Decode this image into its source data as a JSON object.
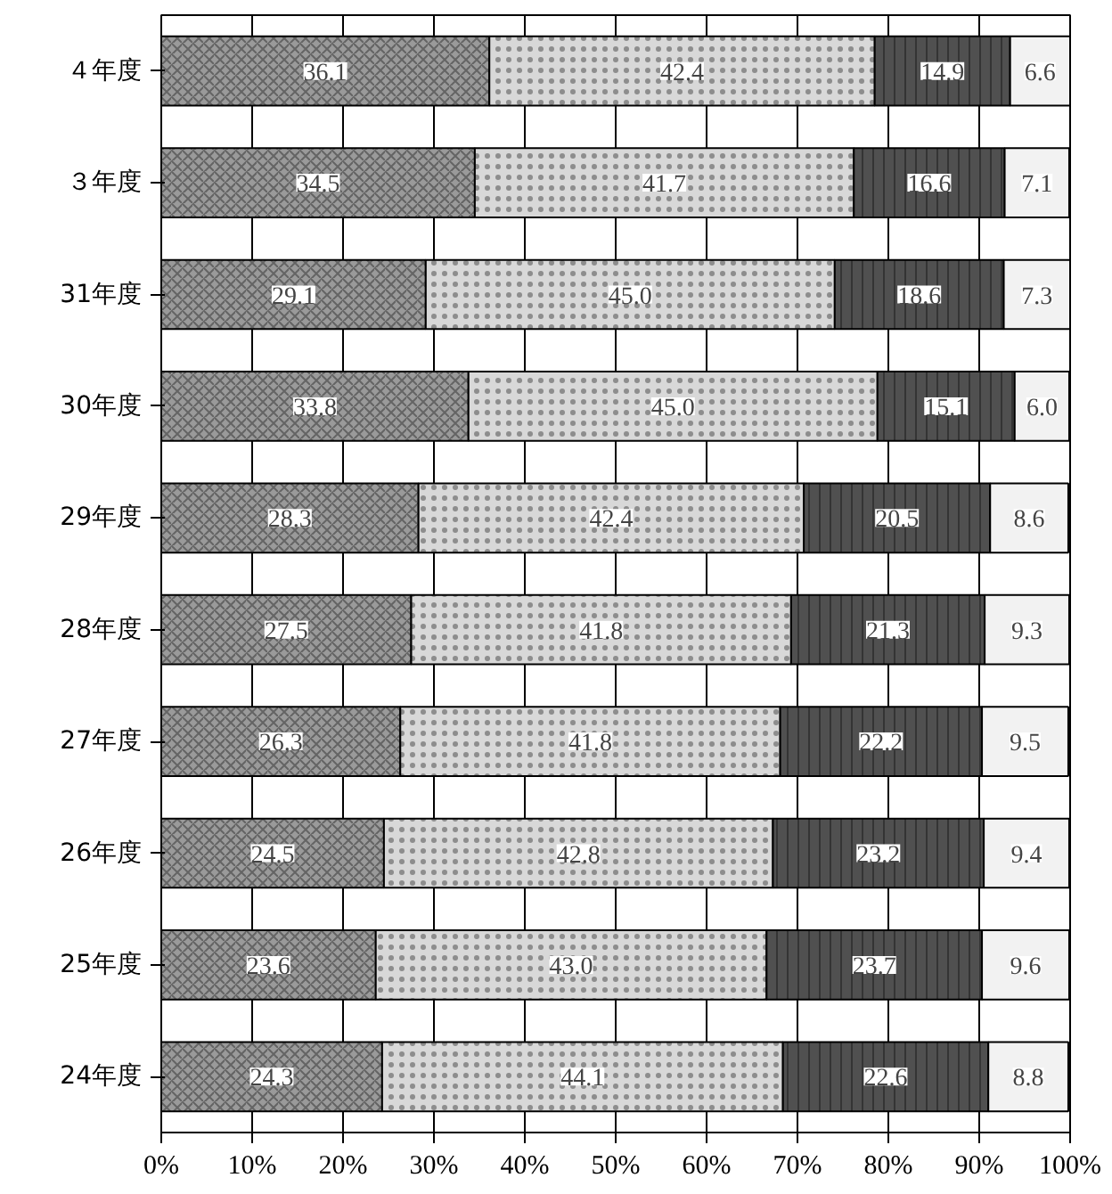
{
  "chart_data": {
    "type": "bar",
    "orientation": "horizontal",
    "stacked": true,
    "categories": [
      "４年度",
      "３年度",
      "31年度",
      "30年度",
      "29年度",
      "28年度",
      "27年度",
      "26年度",
      "25年度",
      "24年度"
    ],
    "series": [
      {
        "color": "#9a9a9a",
        "values": [
          36.1,
          34.5,
          29.1,
          33.8,
          28.3,
          27.5,
          26.3,
          24.5,
          23.6,
          24.3
        ],
        "value_labels": [
          "36.1",
          "34.5",
          "29.1",
          "33.8",
          "28.3",
          "27.5",
          "26.3",
          "24.5",
          "23.6",
          "24.3"
        ]
      },
      {
        "color": "#d8d8d8",
        "values": [
          42.4,
          41.7,
          45.0,
          45.0,
          42.4,
          41.8,
          41.8,
          42.8,
          43.0,
          44.1
        ],
        "value_labels": [
          "42.4",
          "41.7",
          "45.0",
          "45.0",
          "42.4",
          "41.8",
          "41.8",
          "42.8",
          "43.0",
          "44.1"
        ]
      },
      {
        "color": "#505050",
        "values": [
          14.9,
          16.6,
          18.6,
          15.1,
          20.5,
          21.3,
          22.2,
          23.2,
          23.7,
          22.6
        ],
        "value_labels": [
          "14.9",
          "16.6",
          "18.6",
          "15.1",
          "20.5",
          "21.3",
          "22.2",
          "23.2",
          "23.7",
          "22.6"
        ]
      },
      {
        "color": "#f2f2f2",
        "values": [
          6.6,
          7.1,
          7.3,
          6.0,
          8.6,
          9.3,
          9.5,
          9.4,
          9.6,
          8.8
        ],
        "value_labels": [
          "6.6",
          "7.1",
          "7.3",
          "6.0",
          "8.6",
          "9.3",
          "9.5",
          "9.4",
          "9.6",
          "8.8"
        ]
      }
    ],
    "xlim": [
      0,
      100
    ],
    "xticks": [
      {
        "value": 0,
        "label": "0%"
      },
      {
        "value": 10,
        "label": "10%"
      },
      {
        "value": 20,
        "label": "20%"
      },
      {
        "value": 30,
        "label": "30%"
      },
      {
        "value": 40,
        "label": "40%"
      },
      {
        "value": 50,
        "label": "50%"
      },
      {
        "value": 60,
        "label": "60%"
      },
      {
        "value": 70,
        "label": "70%"
      },
      {
        "value": 80,
        "label": "80%"
      },
      {
        "value": 90,
        "label": "90%"
      },
      {
        "value": 100,
        "label": "100%"
      }
    ],
    "grid": "x"
  }
}
